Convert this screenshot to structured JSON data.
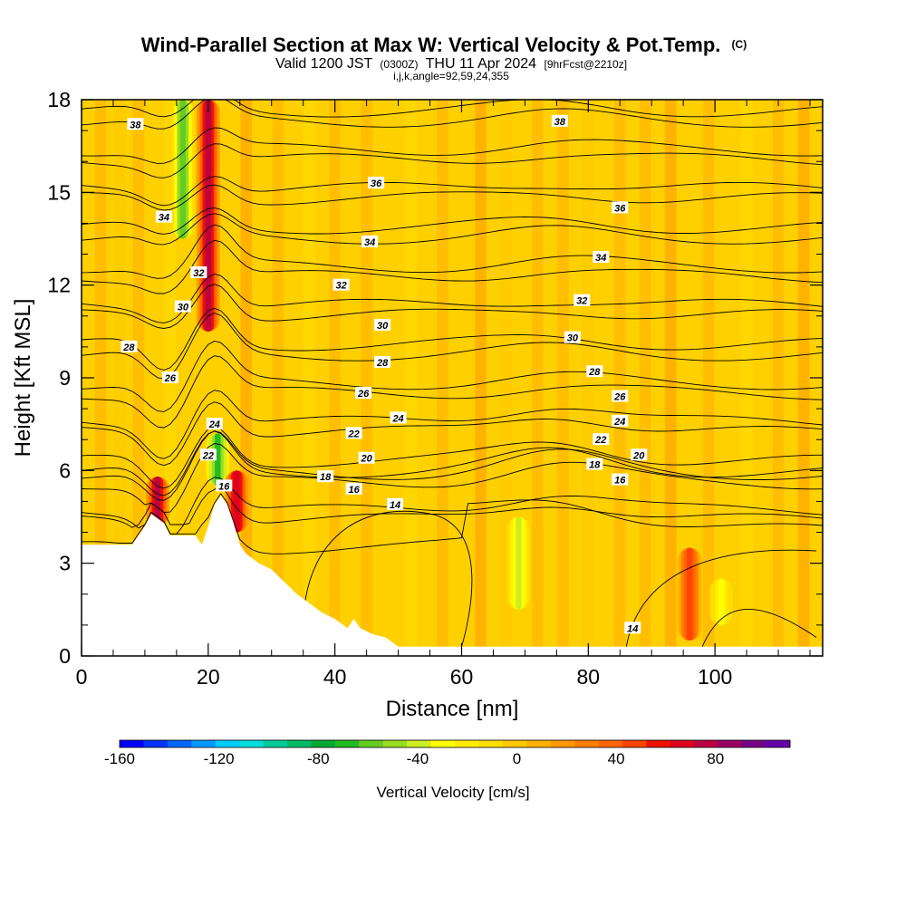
{
  "chart_data": {
    "type": "heatmap",
    "title": "Wind-Parallel Section at Max W: Vertical Velocity & Pot.Temp.",
    "title_unit": "(C)",
    "subtitle_pre": "Valid 1200 JST",
    "subtitle_utc": "(0300Z)",
    "subtitle_date": "THU 11 Apr 2024",
    "subtitle_fcst": "[9hrFcst@2210z]",
    "subtitle2": "i,j,k,angle=92,59,24,355",
    "xlabel": "Distance [nm]",
    "ylabel": "Height [Kft MSL]",
    "xlim": [
      0,
      117
    ],
    "ylim": [
      0,
      18
    ],
    "xticks": [
      "0",
      "20",
      "40",
      "60",
      "80",
      "100"
    ],
    "yticks": [
      "0",
      "3",
      "6",
      "9",
      "12",
      "15",
      "18"
    ],
    "colorbar": {
      "label": "Vertical Velocity [cm/s]",
      "range": [
        -160,
        110
      ],
      "ticks": [
        "-160",
        "-120",
        "-80",
        "-40",
        "0",
        "40",
        "80"
      ],
      "colors": [
        "#0000ff",
        "#0033ff",
        "#0066ff",
        "#0099ff",
        "#00ccff",
        "#00dddd",
        "#00cc99",
        "#00bb66",
        "#00aa33",
        "#22bb22",
        "#66cc22",
        "#99dd22",
        "#ccee22",
        "#ffff00",
        "#ffee00",
        "#ffdd00",
        "#ffc800",
        "#ffb000",
        "#ff9900",
        "#ff7f00",
        "#ff6600",
        "#ff4400",
        "#ee1100",
        "#dd0022",
        "#bb0044",
        "#990066",
        "#770088",
        "#6600aa"
      ]
    },
    "terrain_profile": [
      [
        0,
        3.6
      ],
      [
        8,
        3.6
      ],
      [
        9,
        3.9
      ],
      [
        10,
        4.2
      ],
      [
        11,
        4.6
      ],
      [
        13,
        4.3
      ],
      [
        14,
        3.9
      ],
      [
        18,
        3.9
      ],
      [
        19,
        3.6
      ],
      [
        20,
        4.2
      ],
      [
        21,
        4.9
      ],
      [
        22,
        5.2
      ],
      [
        23,
        4.9
      ],
      [
        24,
        4.3
      ],
      [
        25,
        3.6
      ],
      [
        26,
        3.3
      ],
      [
        28,
        3.0
      ],
      [
        30,
        2.8
      ],
      [
        32,
        2.4
      ],
      [
        34,
        2.0
      ],
      [
        36,
        1.7
      ],
      [
        38,
        1.4
      ],
      [
        40,
        1.2
      ],
      [
        42,
        0.9
      ],
      [
        43,
        1.2
      ],
      [
        44,
        0.9
      ],
      [
        46,
        0.7
      ],
      [
        48,
        0.6
      ],
      [
        50,
        0.3
      ],
      [
        117,
        0.3
      ]
    ],
    "isentropes": [
      14,
      16,
      18,
      20,
      22,
      24,
      26,
      28,
      30,
      32,
      34,
      36,
      38
    ],
    "contour_labels": [
      {
        "value": "38",
        "x": 8.5,
        "y": 17.2
      },
      {
        "value": "38",
        "x": 75.5,
        "y": 17.3
      },
      {
        "value": "36",
        "x": 46.5,
        "y": 15.3
      },
      {
        "value": "36",
        "x": 85,
        "y": 14.5
      },
      {
        "value": "34",
        "x": 13,
        "y": 14.2
      },
      {
        "value": "34",
        "x": 45.5,
        "y": 13.4
      },
      {
        "value": "34",
        "x": 82,
        "y": 12.9
      },
      {
        "value": "32",
        "x": 18.5,
        "y": 12.4
      },
      {
        "value": "32",
        "x": 41,
        "y": 12.0
      },
      {
        "value": "32",
        "x": 79,
        "y": 11.5
      },
      {
        "value": "30",
        "x": 16,
        "y": 11.3
      },
      {
        "value": "30",
        "x": 47.5,
        "y": 10.7
      },
      {
        "value": "30",
        "x": 77.5,
        "y": 10.3
      },
      {
        "value": "28",
        "x": 7.5,
        "y": 10.0
      },
      {
        "value": "28",
        "x": 47.5,
        "y": 9.5
      },
      {
        "value": "28",
        "x": 81,
        "y": 9.2
      },
      {
        "value": "26",
        "x": 14,
        "y": 9.0
      },
      {
        "value": "26",
        "x": 44.5,
        "y": 8.5
      },
      {
        "value": "26",
        "x": 85,
        "y": 8.4
      },
      {
        "value": "24",
        "x": 21,
        "y": 7.5
      },
      {
        "value": "24",
        "x": 50,
        "y": 7.7
      },
      {
        "value": "24",
        "x": 85,
        "y": 7.6
      },
      {
        "value": "22",
        "x": 20,
        "y": 6.5
      },
      {
        "value": "22",
        "x": 43,
        "y": 7.2
      },
      {
        "value": "22",
        "x": 82,
        "y": 7.0
      },
      {
        "value": "20",
        "x": 45,
        "y": 6.4
      },
      {
        "value": "20",
        "x": 88,
        "y": 6.5
      },
      {
        "value": "18",
        "x": 38.5,
        "y": 5.8
      },
      {
        "value": "18",
        "x": 81,
        "y": 6.2
      },
      {
        "value": "16",
        "x": 22.5,
        "y": 5.5
      },
      {
        "value": "16",
        "x": 43,
        "y": 5.4
      },
      {
        "value": "16",
        "x": 85,
        "y": 5.7
      },
      {
        "value": "14",
        "x": 49.5,
        "y": 4.9
      },
      {
        "value": "14",
        "x": 87,
        "y": 0.9
      }
    ],
    "vertical_velocity_features": [
      {
        "x": 16,
        "w": -60,
        "y_min": 13.5,
        "y_max": 18
      },
      {
        "x": 20,
        "w": 80,
        "y_min": 10.5,
        "y_max": 18
      },
      {
        "x": 21.5,
        "w": -70,
        "y_min": 5.5,
        "y_max": 7.2
      },
      {
        "x": 12,
        "w": 80,
        "y_min": 4.2,
        "y_max": 5.8
      },
      {
        "x": 24.5,
        "w": 70,
        "y_min": 4.0,
        "y_max": 6.0
      },
      {
        "x": 69,
        "w": -40,
        "y_min": 1.5,
        "y_max": 4.5
      },
      {
        "x": 96,
        "w": 50,
        "y_min": 0.5,
        "y_max": 3.5
      },
      {
        "x": 101,
        "w": -30,
        "y_min": 1.0,
        "y_max": 2.5
      }
    ]
  }
}
